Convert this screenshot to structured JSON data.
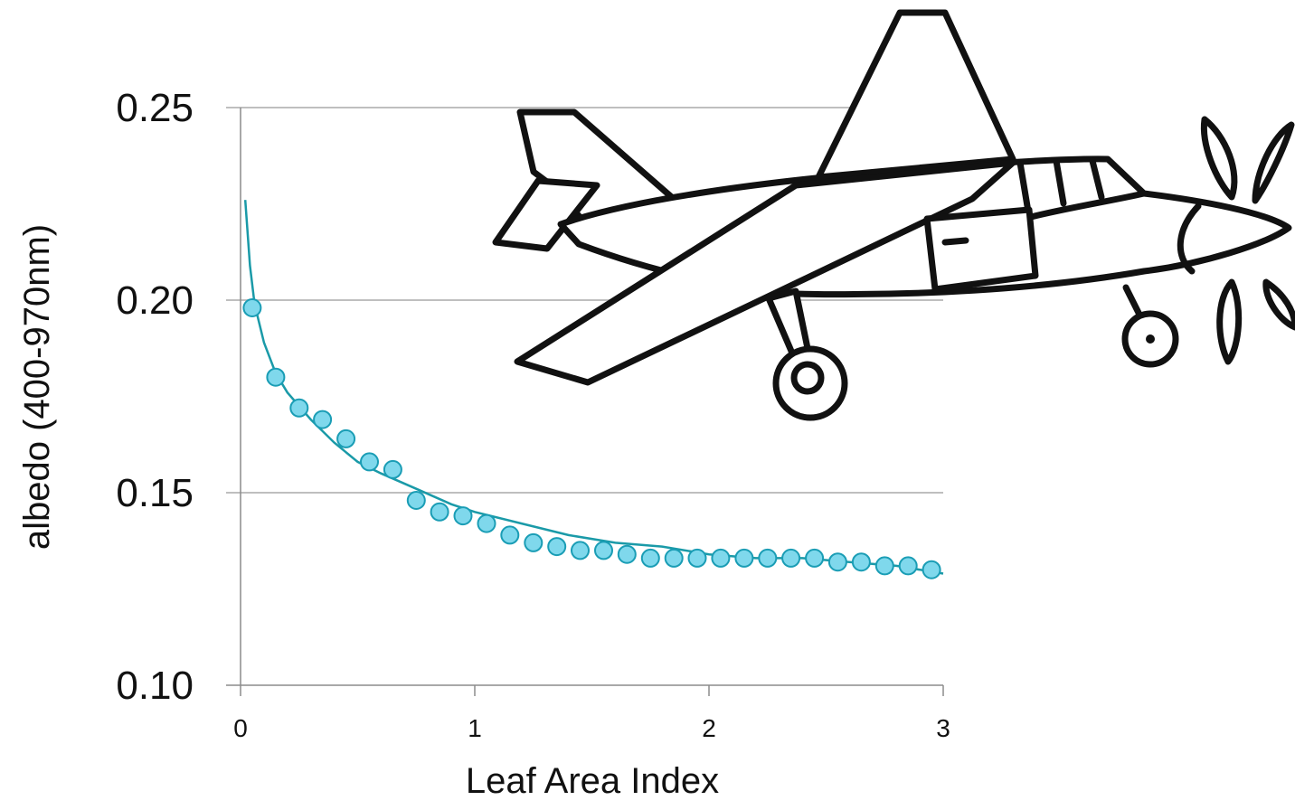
{
  "chart_data": {
    "type": "scatter",
    "title": "",
    "xlabel": "Leaf Area Index",
    "ylabel": "albedo (400-970nm)",
    "xlim": [
      0,
      3
    ],
    "ylim": [
      0.1,
      0.25
    ],
    "x_ticks": [
      "0",
      "1",
      "2",
      "3"
    ],
    "y_ticks": [
      "0.10",
      "0.15",
      "0.20",
      "0.25"
    ],
    "grid": true,
    "legend": "none",
    "colors": {
      "points_fill": "#7fd8ec",
      "points_stroke": "#1a9db5",
      "fit_line": "#1a9aa8",
      "gridline": "#bfbfbf"
    },
    "series": [
      {
        "kind": "points",
        "x": [
          0.05,
          0.15,
          0.25,
          0.35,
          0.45,
          0.55,
          0.65,
          0.75,
          0.85,
          0.95,
          1.05,
          1.15,
          1.25,
          1.35,
          1.45,
          1.55,
          1.65,
          1.75,
          1.85,
          1.95,
          2.05,
          2.15,
          2.25,
          2.35,
          2.45,
          2.55,
          2.65,
          2.75,
          2.85,
          2.95
        ],
        "y": [
          0.198,
          0.18,
          0.172,
          0.169,
          0.164,
          0.158,
          0.156,
          0.148,
          0.145,
          0.144,
          0.142,
          0.139,
          0.137,
          0.136,
          0.135,
          0.135,
          0.134,
          0.133,
          0.133,
          0.133,
          0.133,
          0.133,
          0.133,
          0.133,
          0.133,
          0.132,
          0.132,
          0.131,
          0.131,
          0.13
        ]
      },
      {
        "kind": "fit-line",
        "x": [
          0.02,
          0.04,
          0.06,
          0.1,
          0.15,
          0.2,
          0.3,
          0.4,
          0.5,
          0.6,
          0.75,
          0.9,
          1.0,
          1.2,
          1.4,
          1.6,
          1.8,
          2.0,
          2.2,
          2.4,
          2.6,
          2.8,
          3.0
        ],
        "y": [
          0.226,
          0.209,
          0.199,
          0.189,
          0.181,
          0.176,
          0.169,
          0.163,
          0.158,
          0.155,
          0.151,
          0.147,
          0.145,
          0.142,
          0.139,
          0.137,
          0.136,
          0.134,
          0.133,
          0.133,
          0.132,
          0.131,
          0.129
        ]
      }
    ]
  },
  "decoration": {
    "icon": "airplane-icon"
  }
}
